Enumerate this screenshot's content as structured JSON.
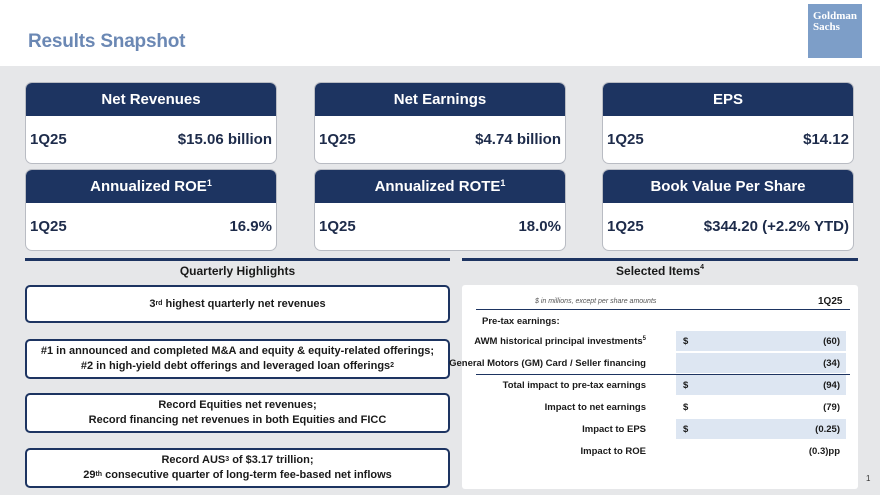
{
  "header": {
    "title": "Results Snapshot",
    "logo_line1": "Goldman",
    "logo_line2": "Sachs"
  },
  "cards": [
    {
      "title": "Net Revenues",
      "sup": "",
      "period": "1Q25",
      "value": "$15.06 billion"
    },
    {
      "title": "Net Earnings",
      "sup": "",
      "period": "1Q25",
      "value": "$4.74 billion"
    },
    {
      "title": "EPS",
      "sup": "",
      "period": "1Q25",
      "value": "$14.12"
    },
    {
      "title": "Annualized ROE",
      "sup": "1",
      "period": "1Q25",
      "value": "16.9%"
    },
    {
      "title": "Annualized ROTE",
      "sup": "1",
      "period": "1Q25",
      "value": "18.0%"
    },
    {
      "title": "Book Value Per Share",
      "sup": "",
      "period": "1Q25",
      "value": "$344.20 (+2.2% YTD)"
    }
  ],
  "highlights": {
    "heading": "Quarterly Highlights",
    "items": [
      {
        "a": "3",
        "a_sup": "rd",
        "a_rest": " highest quarterly net revenues"
      },
      {
        "line1": "#1 in announced and completed M&A and equity & equity-related offerings;",
        "line2": "#2 in high-yield debt offerings and leveraged loan offerings",
        "line2_sup": "2"
      },
      {
        "line1": "Record Equities net revenues;",
        "line2": "Record financing net revenues in both Equities and FICC"
      },
      {
        "line1a": "Record AUS",
        "line1_sup": "3",
        "line1b": " of $3.17 trillion;",
        "line2a": "29",
        "line2_sup": "th",
        "line2b": " consecutive quarter of long-term fee-based net inflows"
      }
    ]
  },
  "selected": {
    "heading": "Selected Items",
    "heading_sup": "4",
    "note": "$ in millions, except per share amounts",
    "column": "1Q25",
    "pretax_label": "Pre-tax earnings:",
    "rows": [
      {
        "label": "AWM historical principal investments",
        "sup": "5",
        "currency": "$",
        "value": "(60)"
      },
      {
        "label": "General Motors (GM) Card / Seller financing",
        "sup": "",
        "currency": "",
        "value": "(34)"
      },
      {
        "label": "Total impact to pre-tax earnings",
        "sup": "",
        "currency": "$",
        "value": "(94)"
      },
      {
        "label": "Impact to net earnings",
        "sup": "",
        "currency": "$",
        "value": "(79)"
      },
      {
        "label": "Impact to EPS",
        "sup": "",
        "currency": "$",
        "value": "(0.25)"
      },
      {
        "label": "Impact to ROE",
        "sup": "",
        "currency": "",
        "value": "(0.3)pp"
      }
    ]
  },
  "page_number": "1",
  "colors": {
    "navy": "#1d3461",
    "title_blue": "#6b88b4",
    "band_gray": "#e6e7e9",
    "row_shade": "#dde6f2"
  }
}
